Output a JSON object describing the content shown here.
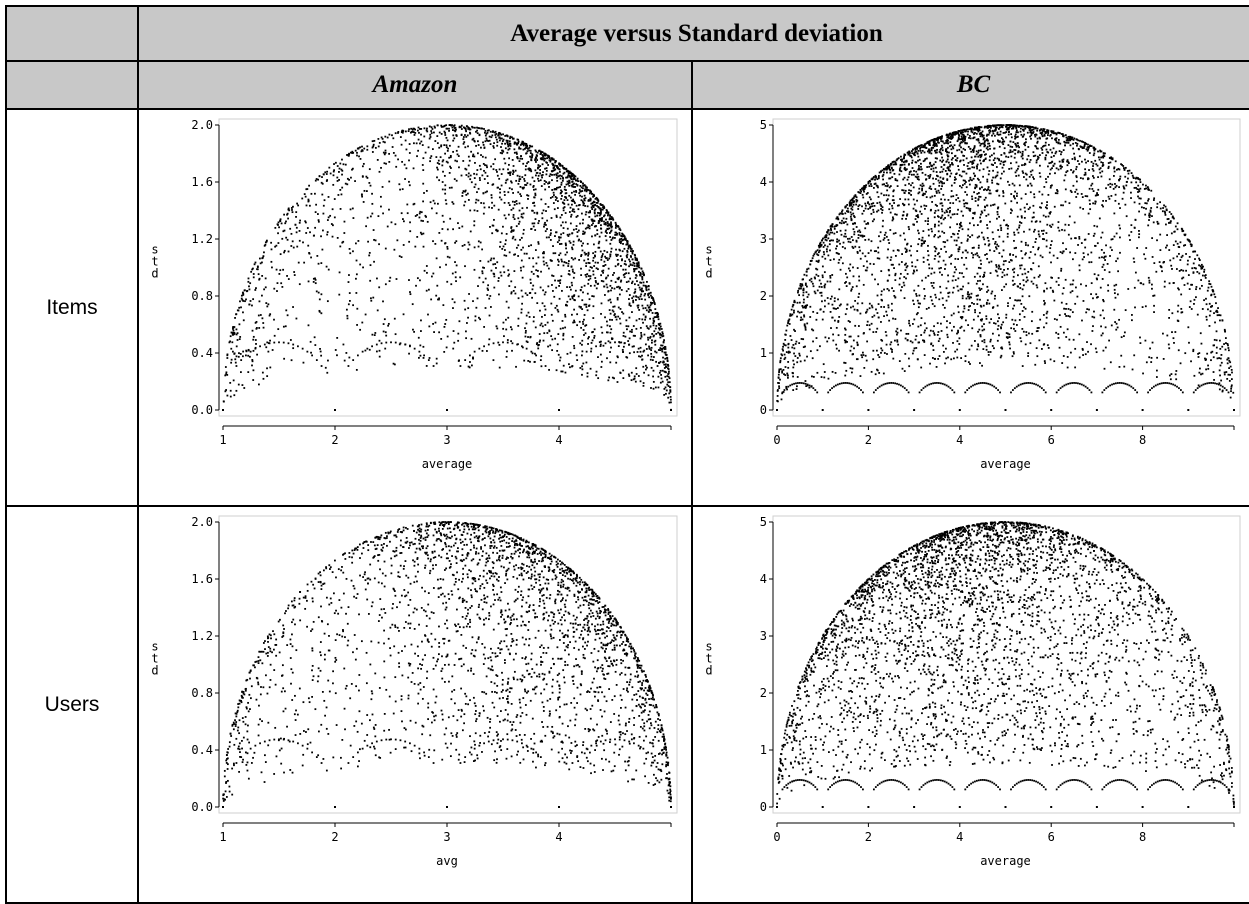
{
  "table": {
    "title": "Average versus Standard deviation",
    "columns": [
      "Amazon",
      "BC"
    ],
    "rows": [
      "Items",
      "Users"
    ]
  },
  "chart_data": [
    {
      "type": "scatter",
      "panel": "Amazon / Items",
      "xlabel": "average",
      "ylabel": "std",
      "xlim": [
        1,
        5
      ],
      "ylim": [
        0,
        2
      ],
      "xticks": [
        1,
        2,
        3,
        4
      ],
      "yticks": [
        0.0,
        0.4,
        0.8,
        1.2,
        1.6,
        2.0
      ],
      "yticks_labels": [
        "0.0",
        "0.4",
        "0.8",
        "1.2",
        "1.6",
        "2.0"
      ],
      "rmax": 5,
      "density": 0.85,
      "dense_center": 4.2
    },
    {
      "type": "scatter",
      "panel": "BC / Items",
      "xlabel": "average",
      "ylabel": "std",
      "xlim": [
        0,
        10
      ],
      "ylim": [
        0,
        5
      ],
      "xticks": [
        0,
        2,
        4,
        6,
        8
      ],
      "yticks": [
        0,
        1,
        2,
        3,
        4,
        5
      ],
      "yticks_labels": [
        "0",
        "1",
        "2",
        "3",
        "4",
        "5"
      ],
      "rmax": 10,
      "density": 1.0,
      "dense_center": 4.0
    },
    {
      "type": "scatter",
      "panel": "Amazon / Users",
      "xlabel": "avg",
      "ylabel": "std",
      "xlim": [
        1,
        5
      ],
      "ylim": [
        0,
        2
      ],
      "xticks": [
        1,
        2,
        3,
        4
      ],
      "yticks": [
        0.0,
        0.4,
        0.8,
        1.2,
        1.6,
        2.0
      ],
      "yticks_labels": [
        "0.0",
        "0.4",
        "0.8",
        "1.2",
        "1.6",
        "2.0"
      ],
      "rmax": 5,
      "density": 0.75,
      "dense_center": 3.8
    },
    {
      "type": "scatter",
      "panel": "BC / Users",
      "xlabel": "average",
      "ylabel": "std",
      "xlim": [
        0,
        10
      ],
      "ylim": [
        0,
        5
      ],
      "xticks": [
        0,
        2,
        4,
        6,
        8
      ],
      "yticks": [
        0,
        1,
        2,
        3,
        4,
        5
      ],
      "yticks_labels": [
        "0",
        "1",
        "2",
        "3",
        "4",
        "5"
      ],
      "rmax": 10,
      "density": 1.0,
      "dense_center": 4.0
    }
  ]
}
